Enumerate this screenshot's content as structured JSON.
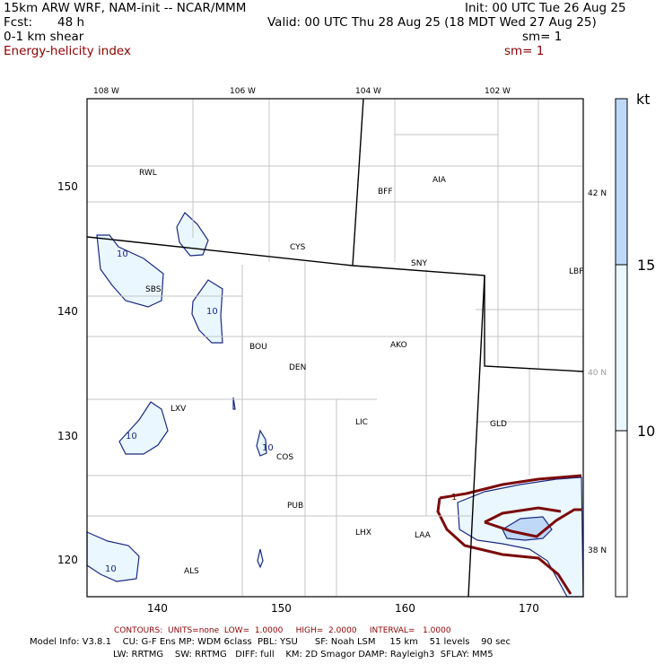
{
  "header": {
    "line1_left": "15km ARW WRF, NAM-init -- NCAR/MMM",
    "line1_right": "Init: 00 UTC Tue 26 Aug 25",
    "fcst_label": "Fcst:",
    "fcst_value": "48 h",
    "valid": "Valid: 00 UTC Thu 28 Aug 25 (18 MDT Wed 27 Aug 25)",
    "field1": "0-1 km shear",
    "field1_sm": "sm= 1",
    "field2": "Energy-helicity index",
    "field2_sm": "sm= 1"
  },
  "map": {
    "top_lon_labels": [
      "108 W",
      "106 W",
      "104 W",
      "102 W"
    ],
    "left_y_ticks": [
      "150",
      "140",
      "130",
      "120"
    ],
    "bottom_x_ticks": [
      "140",
      "150",
      "160",
      "170"
    ],
    "right_lat_labels": [
      "42 N",
      "40 N",
      "38 N"
    ],
    "cities": [
      "RWL",
      "BFF",
      "AIA",
      "CYS",
      "SNY",
      "LBF",
      "SBS",
      "BOU",
      "AKO",
      "DEN",
      "LXV",
      "LIC",
      "GLD",
      "COS",
      "PUB",
      "LHX",
      "LAA",
      "ALS"
    ],
    "shear_contour_labels": [
      "10",
      "10",
      "10",
      "10",
      "10"
    ],
    "ehi_contour_label": "1"
  },
  "colorbar": {
    "unit": "kt",
    "labels": [
      "15",
      "10"
    ],
    "colors": [
      "#c0d8f8",
      "#eaf7ff",
      "#ffffff"
    ]
  },
  "footer": {
    "contours": "CONTOURS:  UNITS=none  LOW=  1.0000     HIGH=  2.0000     INTERVAL=   1.0000",
    "model_line1": "Model Info: V3.8.1    CU: G-F Ens MP: WDM 6class  PBL: YSU      SF: Noah LSM     15 km    51 levels    90 sec",
    "model_line2": "LW: RRTMG    SW: RRTMG   DIFF: full    KM: 2D Smagor DAMP: Rayleigh3  SFLAY: MM5"
  }
}
